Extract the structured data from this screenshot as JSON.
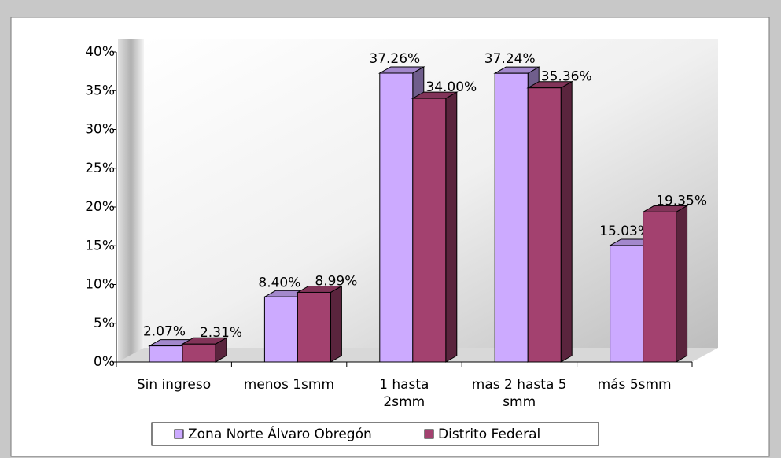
{
  "chart_data": {
    "type": "bar3d",
    "categories": [
      "Sin ingreso",
      "menos 1smm",
      "1 hasta\n2smm",
      "mas 2 hasta 5\nsmm",
      "más 5smm"
    ],
    "series": [
      {
        "name": "Zona Norte Álvaro Obregón",
        "color": "#ccaaff",
        "values": [
          2.07,
          8.4,
          37.26,
          37.24,
          15.03
        ],
        "value_labels": [
          "2.07%",
          "8.40%",
          "37.26%",
          "37.24%",
          "15.03%"
        ]
      },
      {
        "name": "Distrito Federal",
        "color": "#a3416f",
        "values": [
          2.31,
          8.99,
          34.0,
          35.36,
          19.35
        ],
        "value_labels": [
          "2.31%",
          "8.99%",
          "34.00%",
          "35.36%",
          "19.35%"
        ]
      }
    ],
    "ylim": [
      0,
      40
    ],
    "yticks": [
      {
        "value": 0,
        "label": "0%"
      },
      {
        "value": 5,
        "label": "5%"
      },
      {
        "value": 10,
        "label": "10%"
      },
      {
        "value": 15,
        "label": "15%"
      },
      {
        "value": 20,
        "label": "20%"
      },
      {
        "value": 25,
        "label": "25%"
      },
      {
        "value": 30,
        "label": "30%"
      },
      {
        "value": 35,
        "label": "35%"
      },
      {
        "value": 40,
        "label": "40%"
      }
    ],
    "legend": "bottom"
  }
}
